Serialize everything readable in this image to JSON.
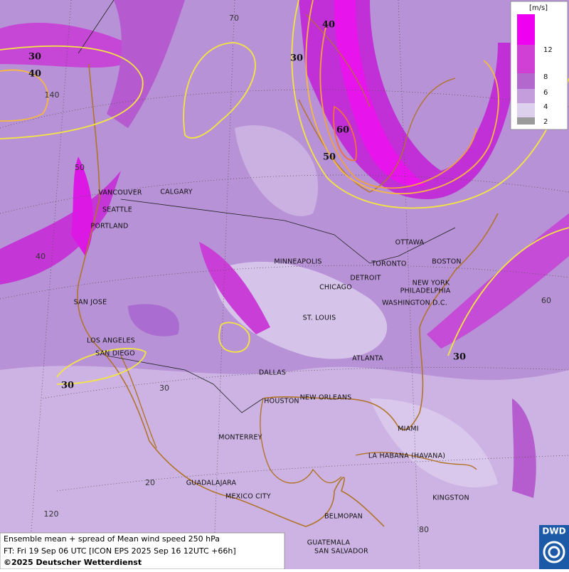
{
  "legend": {
    "unit": "[m/s]",
    "ticks": [
      12,
      8,
      6,
      4,
      2
    ]
  },
  "contour_labels": [
    30,
    40,
    40,
    30,
    60,
    50,
    30,
    30
  ],
  "grid_labels": [
    70,
    140,
    50,
    40,
    60,
    30,
    20,
    120,
    80
  ],
  "cities": [
    "VANCOUVER",
    "CALGARY",
    "SEATTLE",
    "PORTLAND",
    "SAN JOSE",
    "LOS ANGELES",
    "SAN DIEGO",
    "MINNEAPOLIS",
    "CHICAGO",
    "DETROIT",
    "TORONTO",
    "OTTAWA",
    "BOSTON",
    "NEW YORK",
    "PHILADELPHIA",
    "WASHINGTON D.C.",
    "ST. LOUIS",
    "ATLANTA",
    "DALLAS",
    "HOUSTON",
    "NEW ORLEANS",
    "MIAMI",
    "MONTERREY",
    "LA HABANA (HAVANA)",
    "GUADALAJARA",
    "MEXICO CITY",
    "BELMOPAN",
    "KINGSTON",
    "GUATEMALA",
    "SAN SALVADOR"
  ],
  "footer": {
    "line1": "Ensemble mean + spread of Mean wind speed 250 hPa",
    "line2": "FT: Fri 19 Sep 06 UTC [ICON EPS 2025 Sep 16 12UTC +66h]",
    "copyright": "©2025 Deutscher Wetterdienst"
  },
  "logo": "DWD"
}
